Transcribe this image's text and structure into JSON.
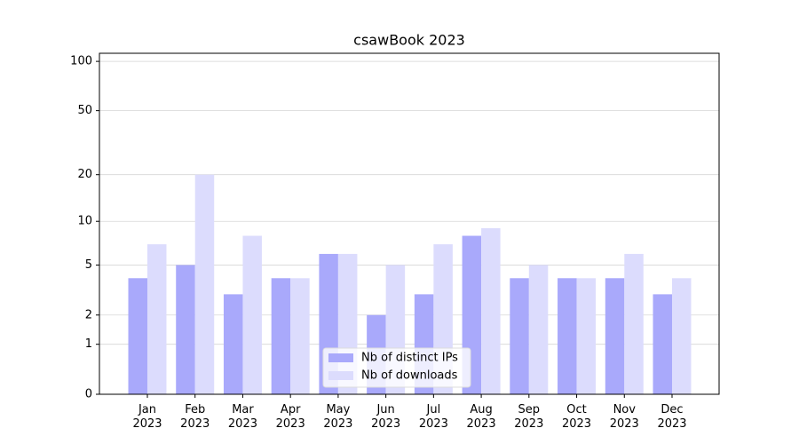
{
  "chart_data": {
    "type": "bar",
    "title": "csawBook 2023",
    "categories": [
      "Jan\n2023",
      "Feb\n2023",
      "Mar\n2023",
      "Apr\n2023",
      "May\n2023",
      "Jun\n2023",
      "Jul\n2023",
      "Aug\n2023",
      "Sep\n2023",
      "Oct\n2023",
      "Nov\n2023",
      "Dec\n2023"
    ],
    "series": [
      {
        "name": "Nb of distinct IPs",
        "color": "#a9a9fb",
        "values": [
          4,
          5,
          3,
          4,
          6,
          2,
          3,
          8,
          4,
          4,
          4,
          3
        ]
      },
      {
        "name": "Nb of downloads",
        "color": "#dcdcfd",
        "values": [
          7,
          20,
          8,
          4,
          6,
          5,
          7,
          9,
          5,
          4,
          6,
          4
        ]
      }
    ],
    "yscale": "log1p",
    "ylim": [
      0,
      112
    ],
    "yticks": [
      0,
      1,
      2,
      5,
      10,
      20,
      50,
      100
    ],
    "grid": true,
    "legend": "lower center"
  }
}
